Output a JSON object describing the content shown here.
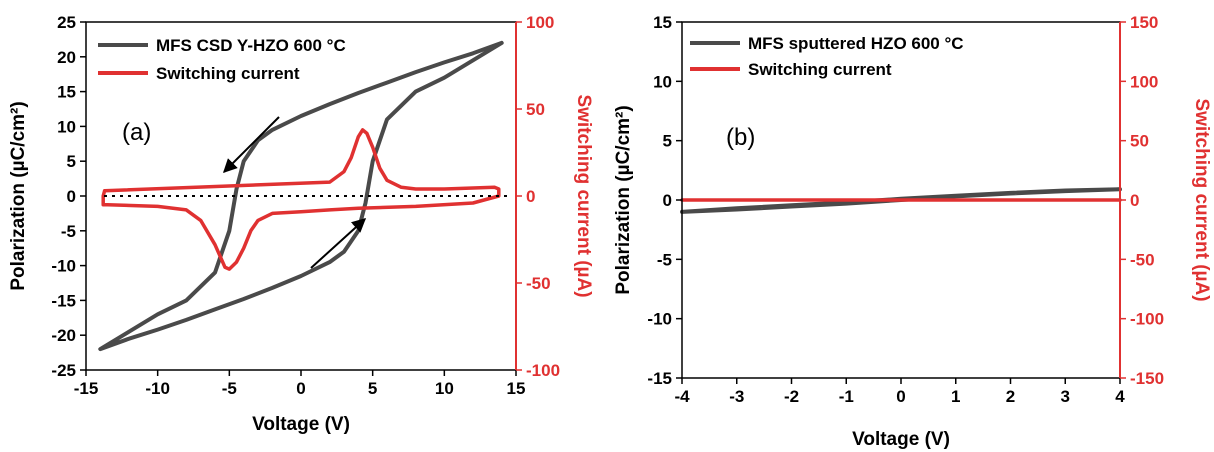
{
  "colors": {
    "hysteresis": "#4a4a4a",
    "current": "#e03131",
    "right_axis": "#e03131",
    "axis": "#000000"
  },
  "chart_data": [
    {
      "type": "line",
      "panel_label": "(a)",
      "xlabel": "Voltage (V)",
      "ylabel": "Polarization (µC/cm²)",
      "y2label": "Switching current (µA)",
      "xlim": [
        -15,
        15
      ],
      "ylim": [
        -25,
        25
      ],
      "y2lim": [
        -100,
        100
      ],
      "xticks": [
        "-15",
        "-10",
        "-5",
        "0",
        "5",
        "10",
        "15"
      ],
      "yticks": [
        "-25",
        "-20",
        "-15",
        "-10",
        "-5",
        "0",
        "5",
        "10",
        "15",
        "20",
        "25"
      ],
      "y2ticks": [
        "-100",
        "-50",
        "0",
        "50",
        "100"
      ],
      "legend_position": "top-left",
      "zero_line": "dotted",
      "annotations": [
        "arrow down-left along upper branch near (-4, 4)",
        "arrow up-right along lower branch near (3, -7)"
      ],
      "series": [
        {
          "name": "MFS CSD Y-HZO 600 °C",
          "axis": "left",
          "x": [
            14,
            12,
            10,
            8,
            6,
            4,
            2,
            0,
            -2,
            -3,
            -4,
            -4.5,
            -5,
            -6,
            -8,
            -10,
            -12,
            -14,
            -12,
            -10,
            -8,
            -6,
            -4,
            -2,
            0,
            2,
            3,
            4,
            4.5,
            5,
            6,
            8,
            10,
            12,
            14
          ],
          "y": [
            22,
            20.5,
            19.2,
            17.8,
            16.3,
            14.8,
            13.2,
            11.5,
            9.5,
            8,
            5,
            1,
            -5,
            -11,
            -15,
            -17,
            -19.5,
            -22,
            -20.5,
            -19.2,
            -17.8,
            -16.3,
            -14.8,
            -13.2,
            -11.5,
            -9.5,
            -8,
            -5,
            -1,
            5,
            11,
            15,
            17,
            19.5,
            22
          ]
        },
        {
          "name": "Switching current",
          "axis": "right",
          "x": [
            -13.7,
            2,
            3,
            3.5,
            4,
            4.3,
            4.6,
            5,
            5.5,
            6,
            7,
            8,
            10,
            13.5,
            13.8,
            13.8,
            12,
            8,
            4,
            2,
            0,
            -2,
            -3,
            -3.5,
            -4,
            -4.5,
            -5,
            -5.3,
            -6,
            -7,
            -8,
            -10,
            -13.5,
            -13.8,
            -13.8,
            -13.7
          ],
          "y": [
            3,
            8,
            14,
            22,
            34,
            38,
            36,
            28,
            16,
            9,
            5,
            4,
            4,
            5,
            4,
            0,
            -4,
            -6,
            -7,
            -8,
            -9,
            -10,
            -14,
            -20,
            -30,
            -38,
            -42,
            -41,
            -28,
            -14,
            -8,
            -6,
            -5,
            -5,
            0,
            3
          ]
        }
      ]
    },
    {
      "type": "line",
      "panel_label": "(b)",
      "xlabel": "Voltage (V)",
      "ylabel": "Polarization (µC/cm²)",
      "y2label": "Switching current (µA)",
      "xlim": [
        -4,
        4
      ],
      "ylim": [
        -15,
        15
      ],
      "y2lim": [
        -150,
        150
      ],
      "xticks": [
        "-4",
        "-3",
        "-2",
        "-1",
        "0",
        "1",
        "2",
        "3",
        "4"
      ],
      "yticks": [
        "-15",
        "-10",
        "-5",
        "0",
        "5",
        "10",
        "15"
      ],
      "y2ticks": [
        "-150",
        "-100",
        "-50",
        "0",
        "50",
        "100",
        "150"
      ],
      "legend_position": "top-left",
      "series": [
        {
          "name": "MFS sputtered HZO 600 °C",
          "axis": "left",
          "x": [
            -4,
            -3,
            -2,
            -1,
            0,
            1,
            2,
            3,
            4,
            3,
            2,
            1,
            0,
            -1,
            -2,
            -3,
            -4
          ],
          "y": [
            -1.0,
            -0.8,
            -0.55,
            -0.3,
            0.0,
            0.3,
            0.55,
            0.75,
            0.9,
            0.8,
            0.6,
            0.35,
            0.1,
            -0.2,
            -0.45,
            -0.7,
            -1.0
          ]
        },
        {
          "name": "Switching current",
          "axis": "right",
          "x": [
            -4,
            -2,
            0,
            2,
            4
          ],
          "y": [
            0,
            0,
            0,
            0,
            0
          ]
        }
      ]
    }
  ]
}
